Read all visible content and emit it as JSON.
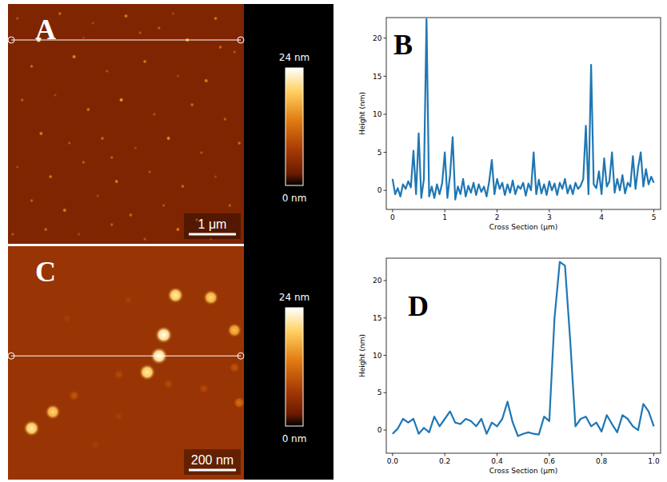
{
  "chart_data": [
    {
      "type": "image",
      "title": "A",
      "xlim": [
        0,
        5
      ],
      "ylim": [
        0,
        5
      ],
      "particles": {
        "x": [
          0.65,
          3.8,
          0.2,
          1.1,
          1.8,
          2.5,
          3.2,
          4.4,
          4.8,
          0.5,
          1.4,
          2.1,
          2.9,
          3.6,
          4.2,
          0.3,
          1.0,
          1.7,
          2.4,
          3.1,
          3.9,
          4.6,
          0.7,
          1.3,
          2.0,
          2.7,
          3.4,
          4.1,
          4.9,
          0.2,
          0.9,
          1.6,
          2.3,
          3.0,
          3.7,
          4.4,
          0.5,
          1.2,
          1.9,
          2.6,
          3.3,
          4.0,
          4.7,
          0.1,
          0.8,
          1.5,
          2.2,
          2.9,
          3.6,
          4.3,
          1.6,
          2.8,
          4.5,
          2.2,
          3.5
        ],
        "y": [
          0.75,
          0.75,
          0.3,
          0.2,
          0.4,
          0.25,
          0.5,
          0.3,
          1.0,
          1.3,
          1.1,
          1.4,
          1.2,
          1.5,
          1.6,
          2.0,
          1.9,
          2.2,
          2.0,
          2.3,
          2.1,
          2.4,
          2.7,
          2.9,
          2.8,
          3.0,
          2.8,
          3.1,
          2.9,
          3.4,
          3.6,
          3.3,
          3.7,
          3.5,
          3.8,
          3.6,
          4.1,
          4.3,
          4.0,
          4.4,
          4.2,
          4.5,
          4.2,
          4.8,
          4.7,
          4.8,
          4.6,
          4.9,
          4.7,
          4.9,
          0.7,
          0.6,
          0.9,
          3.2,
          0.2
        ],
        "height": [
          22,
          16,
          10,
          12,
          9,
          14,
          11,
          13,
          10,
          12,
          15,
          10,
          13,
          9,
          14,
          11,
          9,
          13,
          16,
          10,
          12,
          11,
          14,
          10,
          12,
          9,
          15,
          10,
          12,
          9,
          13,
          11,
          14,
          10,
          12,
          9,
          11,
          14,
          9,
          12,
          10,
          13,
          11,
          10,
          12,
          9,
          11,
          10,
          14,
          9,
          8,
          10,
          12,
          11,
          9
        ]
      },
      "profile_y": 0.75,
      "scale_bar": {
        "value": 1,
        "label": "1 μm"
      },
      "colorbar": {
        "range": [
          0,
          24
        ],
        "ticks": [
          {
            "value": 24,
            "label": "24 nm"
          },
          {
            "value": 0,
            "label": "0 nm"
          }
        ]
      }
    },
    {
      "type": "line",
      "title": "B",
      "x_label": "Cross Section (μm)",
      "y_label": "Height (nm)",
      "color": "#1f77b4",
      "xlim": [
        -0.12,
        5.13
      ],
      "ylim": [
        -2.5,
        22.7
      ],
      "xticks": [
        0,
        1,
        2,
        3,
        4,
        5
      ],
      "yticks": [
        0,
        5,
        10,
        15,
        20
      ],
      "x": [
        0,
        0.05,
        0.1,
        0.15,
        0.2,
        0.25,
        0.3,
        0.35,
        0.4,
        0.45,
        0.5,
        0.55,
        0.6,
        0.65,
        0.7,
        0.75,
        0.8,
        0.85,
        0.9,
        0.95,
        1.0,
        1.05,
        1.1,
        1.15,
        1.2,
        1.25,
        1.3,
        1.35,
        1.4,
        1.45,
        1.5,
        1.55,
        1.6,
        1.65,
        1.7,
        1.75,
        1.8,
        1.85,
        1.9,
        1.95,
        2.0,
        2.05,
        2.1,
        2.15,
        2.2,
        2.25,
        2.3,
        2.35,
        2.4,
        2.45,
        2.5,
        2.55,
        2.6,
        2.65,
        2.7,
        2.75,
        2.8,
        2.85,
        2.9,
        2.95,
        3.0,
        3.05,
        3.1,
        3.15,
        3.2,
        3.25,
        3.3,
        3.35,
        3.4,
        3.45,
        3.5,
        3.55,
        3.6,
        3.65,
        3.7,
        3.75,
        3.8,
        3.85,
        3.9,
        3.95,
        4.0,
        4.05,
        4.1,
        4.15,
        4.2,
        4.25,
        4.3,
        4.35,
        4.4,
        4.45,
        4.5,
        4.55,
        4.6,
        4.65,
        4.7,
        4.75,
        4.8,
        4.85,
        4.9,
        4.95,
        5.0
      ],
      "values": [
        1.5,
        -0.5,
        0.3,
        -0.8,
        0.8,
        0.2,
        1.2,
        0.4,
        5.2,
        -0.5,
        7.5,
        -1.0,
        1.5,
        22.5,
        -0.8,
        0.5,
        -1.0,
        0.8,
        -0.5,
        1.0,
        5.0,
        -1.0,
        2.0,
        7.0,
        -1.2,
        0.5,
        -0.5,
        1.5,
        -0.8,
        0.6,
        -0.3,
        1.0,
        -0.6,
        0.8,
        -0.2,
        0.5,
        -0.8,
        1.2,
        4.0,
        -0.5,
        1.5,
        0.2,
        1.0,
        -0.6,
        0.8,
        -0.3,
        1.3,
        -0.5,
        0.6,
        0.2,
        1.0,
        -0.7,
        0.9,
        0.0,
        5.0,
        -0.5,
        1.4,
        -0.4,
        0.8,
        -0.6,
        1.2,
        0.0,
        0.9,
        -0.6,
        1.0,
        0.2,
        1.5,
        -0.4,
        0.7,
        -0.5,
        1.0,
        0.2,
        0.6,
        1.5,
        8.5,
        -0.5,
        16.5,
        0.8,
        0.3,
        2.5,
        -0.5,
        4.2,
        0.5,
        1.2,
        5.0,
        -0.3,
        1.5,
        0.0,
        2.0,
        -0.4,
        1.0,
        0.5,
        4.5,
        0.2,
        3.0,
        5.0,
        0.5,
        2.8,
        0.8,
        1.8,
        1.0
      ]
    },
    {
      "type": "image",
      "title": "C",
      "xlim": [
        0,
        1
      ],
      "ylim": [
        0,
        1
      ],
      "particles": {
        "x": [
          0.71,
          0.86,
          0.96,
          0.66,
          0.64,
          0.59,
          0.19,
          0.1,
          0.28,
          0.47,
          0.25,
          0.51,
          0.68,
          0.96,
          0.83,
          0.47,
          0.37,
          0.98
        ],
        "y": [
          0.21,
          0.22,
          0.36,
          0.38,
          0.47,
          0.54,
          0.71,
          0.78,
          0.64,
          0.55,
          0.31,
          0.23,
          0.59,
          0.52,
          0.61,
          0.73,
          0.85,
          0.67
        ],
        "height": [
          22,
          20,
          18,
          24,
          24,
          22,
          20,
          22,
          10,
          9,
          8,
          8,
          9,
          10,
          9,
          8,
          8,
          12
        ]
      },
      "profile_y": 0.47,
      "scale_bar": {
        "value": 0.2,
        "label": "200 nm"
      },
      "colorbar": {
        "range": [
          0,
          24
        ],
        "ticks": [
          {
            "value": 24,
            "label": "24 nm"
          },
          {
            "value": 0,
            "label": "0 nm"
          }
        ]
      }
    },
    {
      "type": "line",
      "title": "D",
      "x_label": "Cross Section (μm)",
      "y_label": "Height (nm)",
      "color": "#1f77b4",
      "xlim": [
        -0.024,
        1.026
      ],
      "ylim": [
        -3.1,
        23
      ],
      "xticks": [
        {
          "value": 0,
          "label": "0.0"
        },
        {
          "value": 0.2,
          "label": "0.2"
        },
        {
          "value": 0.4,
          "label": "0.4"
        },
        {
          "value": 0.6,
          "label": "0.6"
        },
        {
          "value": 0.8,
          "label": "0.8"
        },
        {
          "value": 1,
          "label": "1.0"
        }
      ],
      "yticks": [
        0,
        5,
        10,
        15,
        20
      ],
      "x": [
        0,
        0.02,
        0.04,
        0.06,
        0.08,
        0.1,
        0.12,
        0.14,
        0.16,
        0.18,
        0.2,
        0.22,
        0.24,
        0.26,
        0.28,
        0.3,
        0.32,
        0.34,
        0.36,
        0.38,
        0.4,
        0.42,
        0.44,
        0.46,
        0.48,
        0.5,
        0.52,
        0.54,
        0.56,
        0.58,
        0.6,
        0.62,
        0.64,
        0.66,
        0.68,
        0.7,
        0.72,
        0.74,
        0.76,
        0.78,
        0.8,
        0.82,
        0.84,
        0.86,
        0.88,
        0.9,
        0.92,
        0.94,
        0.96,
        0.98,
        1.0
      ],
      "values": [
        -0.5,
        0.2,
        1.5,
        1.0,
        1.5,
        -0.5,
        0.3,
        -0.3,
        1.8,
        0.5,
        1.5,
        2.5,
        1.0,
        0.8,
        1.5,
        1.2,
        0.5,
        1.5,
        -0.5,
        1.0,
        0.5,
        1.5,
        3.8,
        1.0,
        -0.8,
        -0.5,
        -0.3,
        -0.5,
        -0.6,
        1.8,
        1.2,
        15.0,
        22.5,
        22.0,
        12.0,
        0.5,
        1.5,
        1.8,
        0.5,
        1.0,
        -0.2,
        2.0,
        0.8,
        -0.3,
        2.0,
        1.5,
        0.5,
        0.0,
        3.5,
        2.5,
        0.5
      ]
    }
  ]
}
